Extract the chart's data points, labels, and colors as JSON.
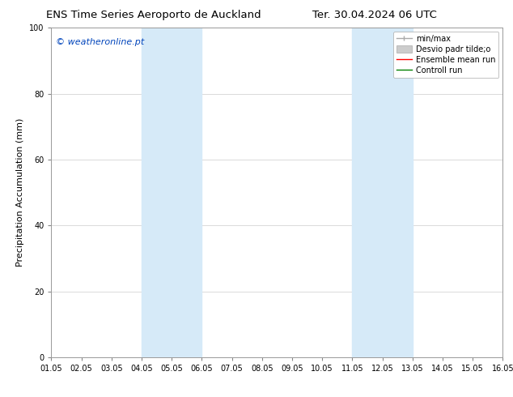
{
  "title_left": "ENS Time Series Aeroporto de Auckland",
  "title_right": "Ter. 30.04.2024 06 UTC",
  "ylabel": "Precipitation Accumulation (mm)",
  "xlim": [
    1.05,
    16.05
  ],
  "ylim": [
    0,
    100
  ],
  "xtick_labels": [
    "01.05",
    "02.05",
    "03.05",
    "04.05",
    "05.05",
    "06.05",
    "07.05",
    "08.05",
    "09.05",
    "10.05",
    "11.05",
    "12.05",
    "13.05",
    "14.05",
    "15.05",
    "16.05"
  ],
  "xtick_values": [
    1.05,
    2.05,
    3.05,
    4.05,
    5.05,
    6.05,
    7.05,
    8.05,
    9.05,
    10.05,
    11.05,
    12.05,
    13.05,
    14.05,
    15.05,
    16.05
  ],
  "ytick_values": [
    0,
    20,
    40,
    60,
    80,
    100
  ],
  "shaded_regions": [
    {
      "xmin": 4.05,
      "xmax": 6.05,
      "color": "#d6eaf8"
    },
    {
      "xmin": 11.05,
      "xmax": 13.05,
      "color": "#d6eaf8"
    }
  ],
  "watermark_text": "© weatheronline.pt",
  "watermark_color": "#0044bb",
  "bg_color": "#ffffff",
  "plot_bg_color": "#ffffff",
  "grid_color": "#cccccc",
  "title_fontsize": 9.5,
  "axis_label_fontsize": 8,
  "tick_fontsize": 7,
  "legend_fontsize": 7,
  "watermark_fontsize": 8
}
